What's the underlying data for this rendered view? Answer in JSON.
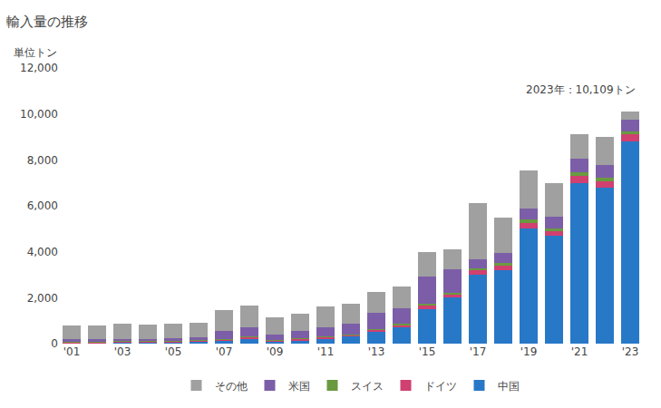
{
  "chart_data": {
    "type": "bar",
    "stacked": true,
    "title": "輸入量の推移",
    "ylabel": "単位トン",
    "annotation": "2023年：10,109トン",
    "categories": [
      "'01",
      null,
      "'03",
      null,
      "'05",
      null,
      "'07",
      null,
      "'09",
      null,
      "'11",
      null,
      "'13",
      null,
      "'15",
      null,
      "'17",
      null,
      "'19",
      null,
      "'21",
      null,
      "'23"
    ],
    "series": [
      {
        "name": "中国",
        "color": "#2878c8",
        "values": [
          20,
          30,
          50,
          50,
          60,
          80,
          100,
          200,
          80,
          150,
          200,
          300,
          500,
          700,
          1500,
          2000,
          3000,
          3200,
          5000,
          4700,
          7000,
          6800,
          8800
        ]
      },
      {
        "name": "ドイツ",
        "color": "#d04070",
        "values": [
          40,
          40,
          40,
          40,
          45,
          50,
          80,
          80,
          60,
          70,
          80,
          80,
          100,
          100,
          150,
          150,
          180,
          200,
          250,
          200,
          300,
          280,
          300
        ]
      },
      {
        "name": "スイス",
        "color": "#6a9a40",
        "values": [
          20,
          20,
          20,
          20,
          20,
          20,
          30,
          30,
          20,
          25,
          30,
          30,
          50,
          50,
          80,
          80,
          100,
          100,
          150,
          120,
          150,
          150,
          150
        ]
      },
      {
        "name": "米国",
        "color": "#7b5ea7",
        "values": [
          100,
          100,
          100,
          100,
          100,
          120,
          350,
          400,
          250,
          300,
          400,
          450,
          700,
          700,
          1200,
          1000,
          400,
          450,
          500,
          500,
          600,
          550,
          500
        ]
      },
      {
        "name": "その他",
        "color": "#a0a0a0",
        "values": [
          620,
          580,
          650,
          620,
          625,
          630,
          890,
          940,
          740,
          755,
          890,
          870,
          900,
          950,
          1070,
          870,
          2420,
          1550,
          1650,
          1480,
          1050,
          1220,
          359
        ]
      }
    ],
    "ylim": [
      0,
      12000
    ],
    "yticks": [
      0,
      {
        "value": 2000,
        "label": "2,000"
      },
      {
        "value": 4000,
        "label": "4,000"
      },
      {
        "value": 6000,
        "label": "6,000"
      },
      {
        "value": 8000,
        "label": "8,000"
      },
      {
        "value": 10000,
        "label": "10,000"
      },
      {
        "value": 12000,
        "label": "12,000"
      }
    ],
    "grid": false,
    "legend": "bottom"
  }
}
